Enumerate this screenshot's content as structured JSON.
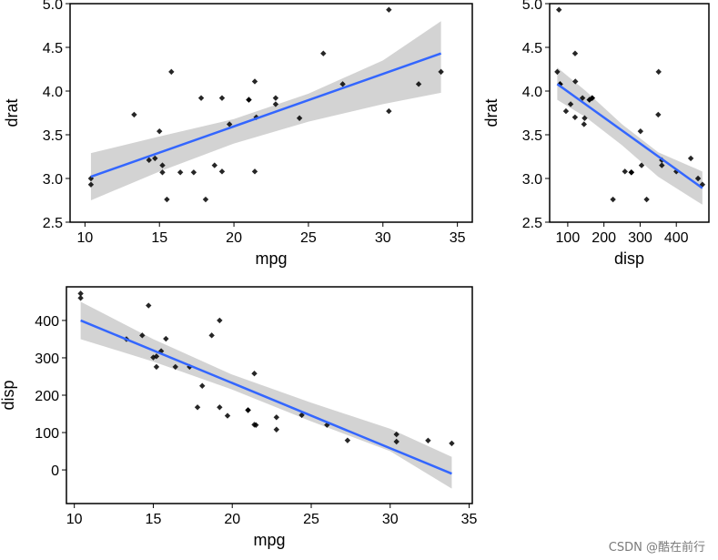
{
  "chart_data": [
    {
      "id": "p1",
      "type": "scatter",
      "smooth": "linear regression with confidence band",
      "xlabel": "mpg",
      "ylabel": "drat",
      "xlim": [
        9,
        36
      ],
      "ylim": [
        2.5,
        5.0
      ],
      "xticks": [
        10,
        15,
        20,
        25,
        30,
        35
      ],
      "yticks": [
        2.5,
        3.0,
        3.5,
        4.0,
        4.5,
        5.0
      ],
      "xtick_labels": [
        "10",
        "15",
        "20",
        "25",
        "30",
        "35"
      ],
      "ytick_labels": [
        "2.5",
        "3.0",
        "3.5",
        "4.0",
        "4.5",
        "5.0"
      ],
      "x": [
        21,
        21,
        22.8,
        21.4,
        18.7,
        18.1,
        14.3,
        24.4,
        22.8,
        19.2,
        17.8,
        16.4,
        17.3,
        15.2,
        10.4,
        10.4,
        14.7,
        32.4,
        30.4,
        33.9,
        21.5,
        15.5,
        15.2,
        13.3,
        19.2,
        27.3,
        26,
        30.4,
        15.8,
        19.7,
        15,
        21.4
      ],
      "y": [
        3.9,
        3.9,
        3.85,
        3.08,
        3.15,
        2.76,
        3.21,
        3.69,
        3.92,
        3.92,
        3.92,
        3.07,
        3.07,
        3.07,
        2.93,
        3.0,
        3.23,
        4.08,
        4.93,
        4.22,
        3.7,
        2.76,
        3.15,
        3.73,
        3.08,
        4.08,
        4.43,
        3.77,
        4.22,
        3.62,
        3.54,
        4.11
      ],
      "fit": {
        "x": [
          10.4,
          33.9
        ],
        "y": [
          3.02,
          4.43
        ]
      },
      "band": {
        "x": [
          10.4,
          15,
          20,
          25,
          30,
          33.9
        ],
        "lower": [
          2.75,
          3.08,
          3.4,
          3.65,
          3.85,
          3.98
        ],
        "upper": [
          3.29,
          3.48,
          3.68,
          3.97,
          4.35,
          4.8
        ]
      }
    },
    {
      "id": "p2",
      "type": "scatter",
      "smooth": "linear regression with confidence band",
      "xlabel": "disp",
      "ylabel": "drat",
      "xlim": [
        50,
        490
      ],
      "ylim": [
        2.5,
        5.0
      ],
      "xticks": [
        100,
        200,
        300,
        400
      ],
      "yticks": [
        2.5,
        3.0,
        3.5,
        4.0,
        4.5,
        5.0
      ],
      "xtick_labels": [
        "100",
        "200",
        "300",
        "400"
      ],
      "ytick_labels": [
        "2.5",
        "3.0",
        "3.5",
        "4.0",
        "4.5",
        "5.0"
      ],
      "x": [
        160,
        160,
        108,
        258,
        360,
        225,
        360,
        146.7,
        140.8,
        167.6,
        167.6,
        275.8,
        275.8,
        275.8,
        472,
        460,
        440,
        78.7,
        75.7,
        71.1,
        120.1,
        318,
        304,
        350,
        400,
        79,
        120.3,
        95.1,
        351,
        145,
        301,
        121
      ],
      "y": [
        3.9,
        3.9,
        3.85,
        3.08,
        3.15,
        2.76,
        3.21,
        3.69,
        3.92,
        3.92,
        3.92,
        3.07,
        3.07,
        3.07,
        2.93,
        3.0,
        3.23,
        4.08,
        4.93,
        4.22,
        3.7,
        2.76,
        3.15,
        3.73,
        3.08,
        4.08,
        4.43,
        3.77,
        4.22,
        3.62,
        3.54,
        4.11
      ],
      "fit": {
        "x": [
          71.1,
          472
        ],
        "y": [
          4.08,
          2.89
        ]
      },
      "band": {
        "x": [
          71.1,
          150,
          250,
          350,
          472
        ],
        "lower": [
          3.9,
          3.7,
          3.38,
          3.02,
          2.7
        ],
        "upper": [
          4.27,
          4.0,
          3.62,
          3.3,
          3.08
        ]
      }
    },
    {
      "id": "p3",
      "type": "scatter",
      "smooth": "linear regression with confidence band",
      "xlabel": "mpg",
      "ylabel": "disp",
      "xlim": [
        9.5,
        35.2
      ],
      "ylim": [
        -90,
        490
      ],
      "xticks": [
        10,
        15,
        20,
        25,
        30,
        35
      ],
      "yticks": [
        0,
        100,
        200,
        300,
        400
      ],
      "xtick_labels": [
        "10",
        "15",
        "20",
        "25",
        "30",
        "35"
      ],
      "ytick_labels": [
        "0",
        "100",
        "200",
        "300",
        "400"
      ],
      "x": [
        21,
        21,
        22.8,
        21.4,
        18.7,
        18.1,
        14.3,
        24.4,
        22.8,
        19.2,
        17.8,
        16.4,
        17.3,
        15.2,
        10.4,
        10.4,
        14.7,
        32.4,
        30.4,
        33.9,
        21.5,
        15.5,
        15.2,
        13.3,
        19.2,
        27.3,
        26,
        30.4,
        15.8,
        19.7,
        15,
        21.4
      ],
      "y": [
        160,
        160,
        108,
        258,
        360,
        225,
        360,
        146.7,
        140.8,
        167.6,
        167.6,
        275.8,
        275.8,
        275.8,
        472,
        460,
        440,
        78.7,
        75.7,
        71.1,
        120.1,
        318,
        304,
        350,
        400,
        79,
        120.3,
        95.1,
        351,
        145,
        301,
        121
      ],
      "fit": {
        "x": [
          10.4,
          33.9
        ],
        "y": [
          400,
          -10
        ]
      },
      "band": {
        "x": [
          10.4,
          15,
          20,
          25,
          30,
          33.9
        ],
        "lower": [
          350,
          290,
          215,
          130,
          50,
          -50
        ],
        "upper": [
          450,
          350,
          255,
          180,
          110,
          35
        ]
      }
    }
  ],
  "watermark": "CSDN @酷在前行"
}
